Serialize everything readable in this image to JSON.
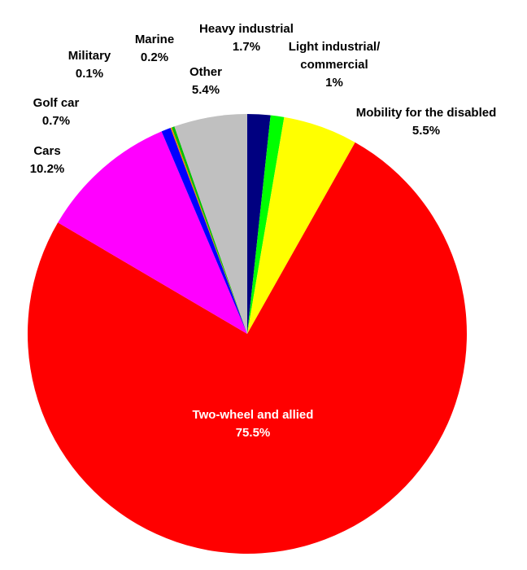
{
  "chart_data": {
    "type": "pie",
    "title": "",
    "start_angle_deg": 0,
    "direction": "clockwise",
    "slices": [
      {
        "label_lines": [
          "Heavy industrial",
          "1.7%"
        ],
        "value": 1.7,
        "color": "#000080"
      },
      {
        "label_lines": [
          "Light industrial/",
          "commercial",
          "1%"
        ],
        "value": 1.0,
        "color": "#00FF00"
      },
      {
        "label_lines": [
          "Mobility for the disabled",
          "5.5%"
        ],
        "value": 5.5,
        "color": "#FFFF00"
      },
      {
        "label_lines": [
          "Two-wheel and allied",
          "75.5%"
        ],
        "value": 75.5,
        "color": "#FF0000"
      },
      {
        "label_lines": [
          "Cars",
          "10.2%"
        ],
        "value": 10.2,
        "color": "#FF00FF"
      },
      {
        "label_lines": [
          "Golf car",
          "0.7%"
        ],
        "value": 0.7,
        "color": "#0000FF"
      },
      {
        "label_lines": [
          "Military",
          "0.1%"
        ],
        "value": 0.1,
        "color": "#FF8000"
      },
      {
        "label_lines": [
          "Marine",
          "0.2%"
        ],
        "value": 0.2,
        "color": "#00C000"
      },
      {
        "label_lines": [
          "Other",
          "5.4%"
        ],
        "value": 5.4,
        "color": "#C0C0C0"
      }
    ]
  }
}
